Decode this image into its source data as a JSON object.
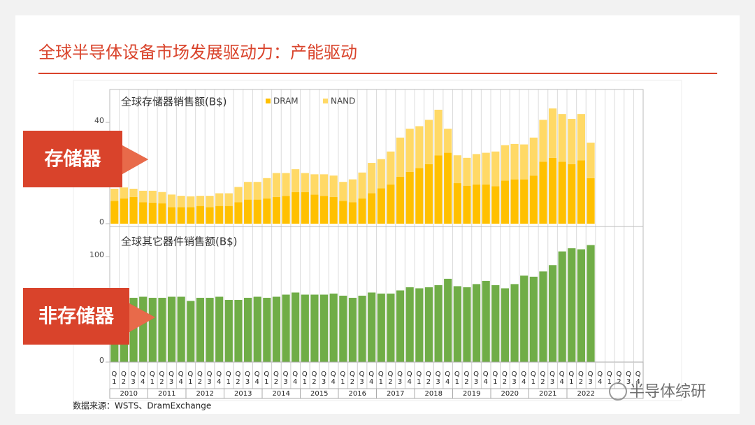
{
  "title": "全球半导体设备市场发展驱动力：产能驱动",
  "label_memory": "存储器",
  "label_non_memory": "非存储器",
  "source": "数据来源：WSTS、DramExchange",
  "watermark": "半导体综研",
  "chart_data": [
    {
      "type": "stacked_bar",
      "title": "全球存储器销售额(B$)",
      "ylim": [
        0,
        53
      ],
      "yticks": [
        0,
        40
      ],
      "series": [
        {
          "name": "DRAM",
          "color": "#ffc000",
          "values": [
            9,
            10,
            10.5,
            8.5,
            8.3,
            8,
            6.5,
            6.5,
            6.5,
            7,
            6.5,
            7,
            7,
            8.5,
            9.5,
            9.5,
            10,
            10.5,
            11,
            12.5,
            12.5,
            11.5,
            11,
            10.5,
            9,
            8.5,
            10,
            12,
            14,
            15.5,
            18.5,
            20.5,
            22,
            23.5,
            27,
            28,
            16,
            15,
            15.5,
            15.5,
            14.8,
            17,
            17.5,
            17.5,
            19,
            24.5,
            26,
            24.5,
            23.5,
            25,
            18,
            null,
            null,
            null,
            null,
            null
          ]
        },
        {
          "name": "NAND",
          "color": "#ffd966",
          "values": [
            4.8,
            4.3,
            3.3,
            4.5,
            4.7,
            4.5,
            5,
            4.5,
            4.3,
            4,
            4.5,
            5,
            5,
            6,
            7,
            7,
            8,
            9.5,
            9,
            9,
            7.5,
            8,
            8.5,
            8.5,
            7.5,
            9,
            10.2,
            12,
            11.5,
            13,
            15.5,
            17,
            16.5,
            17.5,
            18,
            9.5,
            11,
            11,
            12,
            12.5,
            13.7,
            14,
            14,
            13.8,
            15,
            16.5,
            19.5,
            18.8,
            17.9,
            18.3,
            14,
            null,
            null,
            null,
            null,
            null
          ]
        }
      ]
    },
    {
      "type": "bar",
      "title": "全球其它器件销售额(B$)",
      "ylim": [
        0,
        126
      ],
      "yticks": [
        0,
        100
      ],
      "categories": [
        "Q1",
        "Q2",
        "Q3",
        "Q4",
        "Q1",
        "Q2",
        "Q3",
        "Q4",
        "Q1",
        "Q2",
        "Q3",
        "Q4",
        "Q1",
        "Q2",
        "Q3",
        "Q4",
        "Q1",
        "Q2",
        "Q3",
        "Q4",
        "Q1",
        "Q2",
        "Q3",
        "Q4",
        "Q1",
        "Q2",
        "Q3",
        "Q4",
        "Q1",
        "Q2",
        "Q3",
        "Q4",
        "Q1",
        "Q2",
        "Q3",
        "Q4",
        "Q1",
        "Q2",
        "Q3",
        "Q4",
        "Q1",
        "Q2",
        "Q3",
        "Q4",
        "Q1",
        "Q2",
        "Q3",
        "Q4",
        "Q1",
        "Q2",
        "Q3",
        "Q4",
        "Q1",
        "Q2",
        "Q3",
        "Q4"
      ],
      "years": [
        "2010",
        "2011",
        "2012",
        "2013",
        "2014",
        "2015",
        "2016",
        "2017",
        "2018",
        "2019",
        "2020",
        "2021",
        "2022"
      ],
      "color": "#70ad47",
      "values": [
        57,
        60,
        61,
        62,
        61,
        61,
        62,
        62,
        58,
        61,
        61,
        62,
        59,
        59,
        61,
        62,
        61,
        62,
        64,
        66,
        64,
        64,
        64,
        65,
        63,
        61,
        63,
        66,
        65,
        65,
        68,
        71,
        70,
        71,
        73,
        79,
        72,
        71,
        74,
        77,
        73,
        70,
        74,
        82,
        81,
        86,
        92,
        105,
        108,
        107,
        111,
        null,
        null,
        null,
        null,
        null
      ]
    }
  ]
}
